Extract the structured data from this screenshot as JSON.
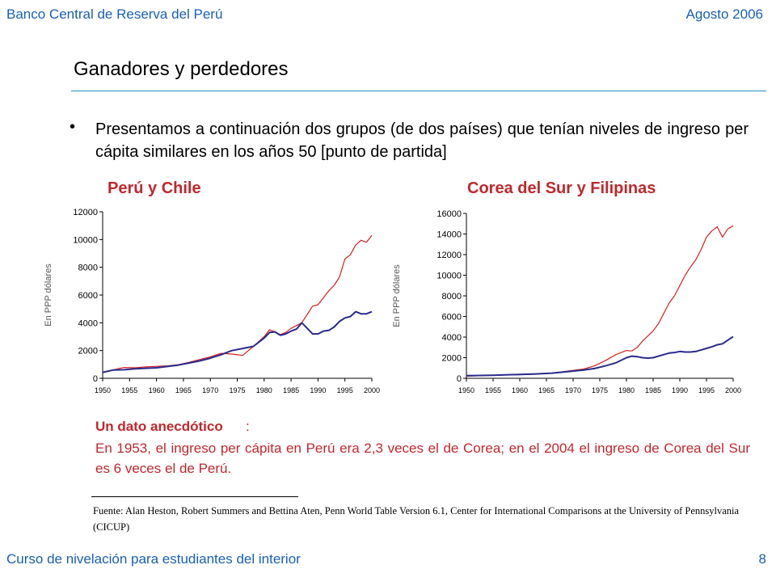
{
  "header": {
    "left": "Banco Central de Reserva del Perú",
    "right": "Agosto 2006"
  },
  "title": "Ganadores y perdedores",
  "bullet": "•",
  "intro": "Presentamos a continuación dos grupos (de dos países) que tenían niveles de ingreso per cápita similares en los años 50 [punto de partida]",
  "note": {
    "heading": "Un dato anecdótico",
    "colon": ":",
    "text": "En 1953, el ingreso per cápita en Perú era 2,3 veces el de Corea; en el 2004 el ingreso de Corea del Sur es 6 veces el de Perú."
  },
  "source": "Fuente: Alan Heston, Robert Summers and Bettina Aten, Penn World Table Version 6.1, Center for International Comparisons at the University of Pennsylvania (CICUP)",
  "footer": {
    "left": "Curso de nivelación para estudiantes del interior",
    "page": "8"
  },
  "colors": {
    "blue_text": "#1a5fb4",
    "red_text": "#c0282d",
    "series_red": "#d42020",
    "series_blue": "#2a2a8c",
    "rule": "#1f8fbf"
  },
  "chart_data": [
    {
      "type": "line",
      "title": "Perú y Chile",
      "xlabel": "",
      "ylabel": "En PPP dólares",
      "xlim": [
        1950,
        2000
      ],
      "ylim": [
        0,
        12000
      ],
      "x_ticks": [
        "1950",
        "1955",
        "1960",
        "1965",
        "1970",
        "1975",
        "1980",
        "1985",
        "1990",
        "1995",
        "2000"
      ],
      "y_ticks": [
        "0",
        "2000",
        "4000",
        "6000",
        "8000",
        "10000",
        "12000"
      ],
      "grid": false,
      "legend": "none",
      "series": [
        {
          "color": "#d42020",
          "x": [
            1950,
            1952,
            1954,
            1956,
            1958,
            1960,
            1962,
            1964,
            1966,
            1968,
            1970,
            1972,
            1974,
            1976,
            1978,
            1980,
            1981,
            1982,
            1983,
            1984,
            1985,
            1986,
            1987,
            1988,
            1989,
            1990,
            1991,
            1992,
            1993,
            1994,
            1995,
            1996,
            1997,
            1998,
            1999,
            2000
          ],
          "values": [
            450,
            620,
            780,
            760,
            820,
            860,
            900,
            980,
            1150,
            1350,
            1550,
            1800,
            1750,
            1650,
            2300,
            3000,
            3500,
            3350,
            3150,
            3300,
            3600,
            3800,
            4000,
            4600,
            5200,
            5300,
            5800,
            6300,
            6700,
            7300,
            8600,
            8900,
            9600,
            9950,
            9800,
            10300
          ]
        },
        {
          "color": "#2a2a8c",
          "x": [
            1950,
            1952,
            1954,
            1956,
            1958,
            1960,
            1962,
            1964,
            1966,
            1968,
            1970,
            1972,
            1974,
            1976,
            1978,
            1980,
            1981,
            1982,
            1983,
            1984,
            1985,
            1986,
            1987,
            1988,
            1989,
            1990,
            1991,
            1992,
            1993,
            1994,
            1995,
            1996,
            1997,
            1998,
            1999,
            2000
          ],
          "values": [
            420,
            600,
            620,
            680,
            720,
            760,
            850,
            950,
            1100,
            1250,
            1450,
            1700,
            2000,
            2150,
            2300,
            2900,
            3300,
            3350,
            3100,
            3200,
            3400,
            3550,
            4000,
            3600,
            3200,
            3200,
            3400,
            3450,
            3700,
            4100,
            4350,
            4450,
            4800,
            4650,
            4650,
            4800
          ]
        }
      ]
    },
    {
      "type": "line",
      "title": "Corea del Sur y Filipinas",
      "xlabel": "",
      "ylabel": "En PPP dólares",
      "xlim": [
        1950,
        2000
      ],
      "ylim": [
        0,
        16000
      ],
      "x_ticks": [
        "1950",
        "1955",
        "1960",
        "1965",
        "1970",
        "1975",
        "1980",
        "1985",
        "1990",
        "1995",
        "2000"
      ],
      "y_ticks": [
        "0",
        "2000",
        "4000",
        "6000",
        "8000",
        "10000",
        "12000",
        "14000",
        "16000"
      ],
      "grid": false,
      "legend": "none",
      "series": [
        {
          "color": "#d42020",
          "x": [
            1950,
            1955,
            1960,
            1963,
            1966,
            1969,
            1972,
            1974,
            1976,
            1978,
            1980,
            1981,
            1982,
            1983,
            1984,
            1985,
            1986,
            1987,
            1988,
            1989,
            1990,
            1991,
            1992,
            1993,
            1994,
            1995,
            1996,
            1997,
            1998,
            1999,
            2000
          ],
          "values": [
            200,
            300,
            350,
            400,
            500,
            700,
            900,
            1200,
            1700,
            2300,
            2700,
            2650,
            3000,
            3600,
            4100,
            4600,
            5300,
            6300,
            7300,
            8000,
            9000,
            10000,
            10800,
            11500,
            12500,
            13700,
            14300,
            14700,
            13700,
            14500,
            14800
          ]
        },
        {
          "color": "#2a2a8c",
          "x": [
            1950,
            1955,
            1960,
            1963,
            1966,
            1969,
            1972,
            1974,
            1976,
            1978,
            1980,
            1981,
            1982,
            1983,
            1984,
            1985,
            1986,
            1987,
            1988,
            1989,
            1990,
            1991,
            1992,
            1993,
            1994,
            1995,
            1996,
            1997,
            1998,
            1999,
            2000
          ],
          "values": [
            250,
            300,
            380,
            420,
            500,
            650,
            800,
            950,
            1200,
            1500,
            2000,
            2150,
            2100,
            2000,
            1950,
            2000,
            2150,
            2300,
            2450,
            2500,
            2600,
            2550,
            2550,
            2600,
            2750,
            2900,
            3050,
            3250,
            3350,
            3700,
            4050
          ]
        }
      ]
    }
  ]
}
